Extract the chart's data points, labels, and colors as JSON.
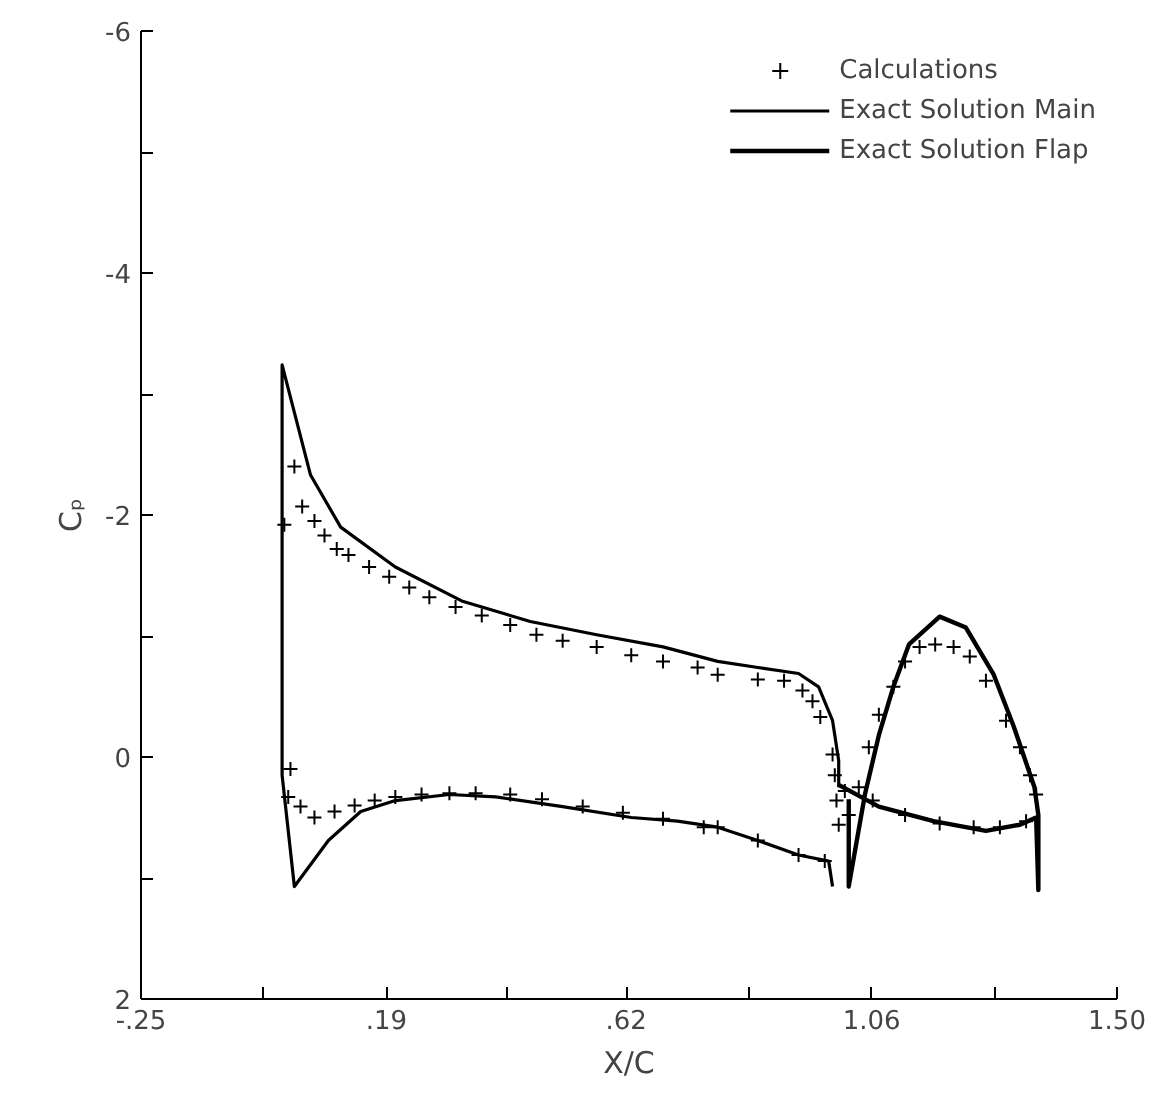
{
  "chart_data": {
    "type": "line",
    "xlabel": "X/C",
    "ylabel": "Cₚ",
    "xlim": [
      -0.25,
      1.5
    ],
    "ylim": [
      2,
      -6
    ],
    "xticks": [
      {
        "value": -0.25,
        "label": "-.25"
      },
      {
        "value": -0.03,
        "label": null
      },
      {
        "value": 0.19,
        "label": ".19"
      },
      {
        "value": 0.405,
        "label": null
      },
      {
        "value": 0.62,
        "label": ".62"
      },
      {
        "value": 0.84,
        "label": null
      },
      {
        "value": 1.06,
        "label": "1.06"
      },
      {
        "value": 1.28,
        "label": null
      },
      {
        "value": 1.5,
        "label": "1.50"
      }
    ],
    "yticks": [
      2,
      {
        "value": 1,
        "label": null
      },
      0,
      {
        "value": -1,
        "label": null
      },
      -2,
      {
        "value": -3,
        "label": null
      },
      -4,
      {
        "value": -5,
        "label": null
      },
      -6
    ],
    "grid": false,
    "legend": "top right",
    "series": [
      {
        "name": "Calculations",
        "type": "scatter",
        "marker": "cross",
        "color": "#000000",
        "x": [
          0.007,
          0.025,
          0.039,
          0.061,
          0.079,
          0.101,
          0.122,
          0.159,
          0.195,
          0.231,
          0.267,
          0.314,
          0.361,
          0.412,
          0.459,
          0.506,
          0.567,
          0.629,
          0.686,
          0.748,
          0.784,
          0.856,
          0.903,
          0.936,
          0.954,
          0.968,
          0.99,
          0.994,
          0.997,
          1.001,
          0.018,
          0.014,
          0.036,
          0.061,
          0.097,
          0.133,
          0.169,
          0.206,
          0.253,
          0.303,
          0.35,
          0.412,
          0.469,
          0.542,
          0.614,
          0.686,
          0.759,
          0.784,
          0.856,
          0.929,
          0.976,
          1.019,
          1.037,
          1.055,
          1.073,
          1.099,
          1.12,
          1.146,
          1.174,
          1.207,
          1.236,
          1.265,
          1.301,
          1.326,
          1.344,
          1.355,
          1.012,
          1.062,
          1.12,
          1.182,
          1.243,
          1.29,
          1.337
        ],
        "values": [
          -1.92,
          -2.4,
          -2.07,
          -1.95,
          -1.83,
          -1.72,
          -1.67,
          -1.57,
          -1.49,
          -1.4,
          -1.32,
          -1.24,
          -1.17,
          -1.09,
          -1.01,
          -0.96,
          -0.91,
          -0.84,
          -0.79,
          -0.74,
          -0.68,
          -0.64,
          -0.63,
          -0.55,
          -0.46,
          -0.33,
          -0.02,
          0.15,
          0.36,
          0.56,
          0.1,
          0.33,
          0.41,
          0.5,
          0.45,
          0.4,
          0.36,
          0.33,
          0.31,
          0.3,
          0.3,
          0.31,
          0.35,
          0.41,
          0.46,
          0.51,
          0.58,
          0.58,
          0.69,
          0.81,
          0.86,
          0.48,
          0.25,
          -0.08,
          -0.35,
          -0.58,
          -0.79,
          -0.91,
          -0.93,
          -0.91,
          -0.83,
          -0.63,
          -0.3,
          -0.08,
          0.15,
          0.31,
          0.28,
          0.36,
          0.48,
          0.55,
          0.58,
          0.58,
          0.53
        ]
      },
      {
        "name": "Exact Solution Main",
        "line_style": "solid",
        "color": "#000000",
        "x": [
          0.99,
          0.983,
          0.929,
          0.856,
          0.784,
          0.712,
          0.629,
          0.506,
          0.386,
          0.303,
          0.206,
          0.144,
          0.086,
          0.025,
          0.003,
          0.003,
          0.054,
          0.108,
          0.206,
          0.325,
          0.448,
          0.567,
          0.686,
          0.784,
          0.856,
          0.929,
          0.965,
          0.99,
          1.001,
          1.001
        ],
        "values": [
          1.07,
          0.86,
          0.81,
          0.69,
          0.58,
          0.53,
          0.5,
          0.41,
          0.33,
          0.31,
          0.36,
          0.45,
          0.69,
          1.07,
          0.15,
          -3.24,
          -2.33,
          -1.9,
          -1.57,
          -1.29,
          -1.12,
          -1.01,
          -0.91,
          -0.79,
          -0.74,
          -0.69,
          -0.58,
          -0.3,
          0.03,
          0.25
        ]
      },
      {
        "name": "Exact Solution Flap",
        "line_style": "solid",
        "color": "#000000",
        "x": [
          1.001,
          1.073,
          1.171,
          1.265,
          1.326,
          1.355,
          1.359,
          1.359,
          1.352,
          1.315,
          1.279,
          1.229,
          1.182,
          1.127,
          1.099,
          1.073,
          1.048,
          1.019,
          1.019
        ],
        "values": [
          0.23,
          0.41,
          0.53,
          0.61,
          0.56,
          0.5,
          1.1,
          0.48,
          0.25,
          -0.25,
          -0.68,
          -1.07,
          -1.16,
          -0.93,
          -0.58,
          -0.18,
          0.31,
          1.07,
          0.35
        ]
      }
    ]
  }
}
